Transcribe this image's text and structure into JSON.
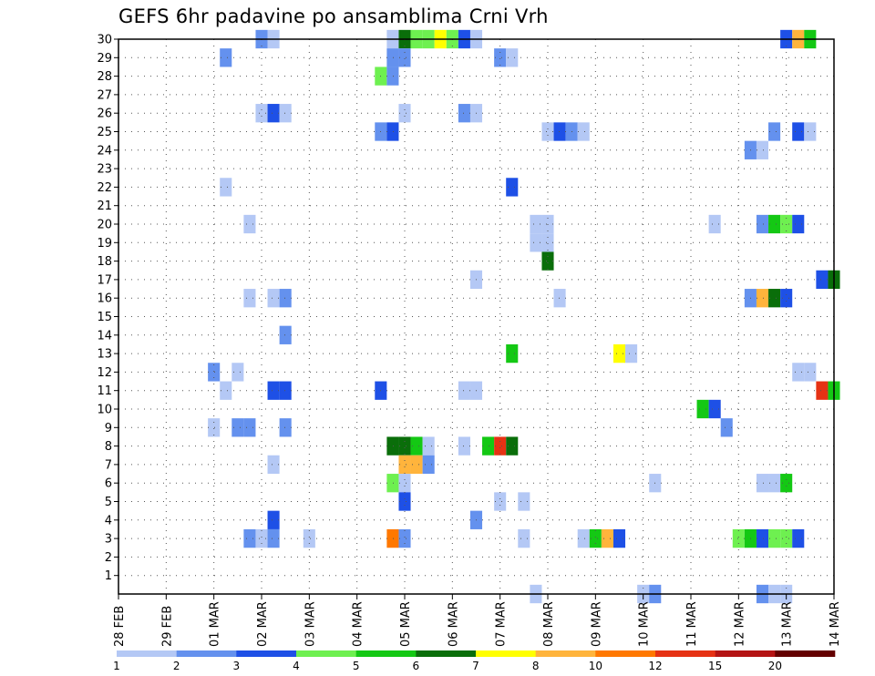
{
  "chart_data": {
    "type": "heatmap",
    "title": "GEFS 6hr padavine po ansamblima Crni Vrh",
    "xlabel": "",
    "ylabel": "",
    "x_unit": "6-hour step",
    "x_range": [
      0,
      60
    ],
    "y_range": [
      0,
      30
    ],
    "x_ticks": [
      {
        "label": "28 FEB",
        "at": 0
      },
      {
        "label": "29 FEB",
        "at": 4
      },
      {
        "label": "01 MAR",
        "at": 8
      },
      {
        "label": "02 MAR",
        "at": 12
      },
      {
        "label": "03 MAR",
        "at": 16
      },
      {
        "label": "04 MAR",
        "at": 20
      },
      {
        "label": "05 MAR",
        "at": 24
      },
      {
        "label": "06 MAR",
        "at": 28
      },
      {
        "label": "07 MAR",
        "at": 32
      },
      {
        "label": "08 MAR",
        "at": 36
      },
      {
        "label": "09 MAR",
        "at": 40
      },
      {
        "label": "10 MAR",
        "at": 44
      },
      {
        "label": "11 MAR",
        "at": 48
      },
      {
        "label": "12 MAR",
        "at": 52
      },
      {
        "label": "13 MAR",
        "at": 56
      },
      {
        "label": "14 MAR",
        "at": 60
      }
    ],
    "y_ticks": [
      "1",
      "2",
      "3",
      "4",
      "5",
      "6",
      "7",
      "8",
      "9",
      "10",
      "11",
      "12",
      "13",
      "14",
      "15",
      "16",
      "17",
      "18",
      "19",
      "20",
      "21",
      "22",
      "23",
      "24",
      "25",
      "26",
      "27",
      "28",
      "29",
      "30"
    ],
    "grid": true,
    "legend": {
      "placement": "bottom",
      "labels": [
        "1",
        "2",
        "3",
        "4",
        "5",
        "6",
        "7",
        "8",
        "10",
        "12",
        "15",
        "20"
      ],
      "colors": [
        "#b4c8f5",
        "#6491ee",
        "#1e50e6",
        "#6ef050",
        "#14c814",
        "#0a6e0a",
        "#ffff00",
        "#ffb43c",
        "#ff7800",
        "#e63214",
        "#b41414",
        "#640000"
      ]
    },
    "cells": [
      [
        12,
        30,
        2
      ],
      [
        13,
        30,
        1
      ],
      [
        23,
        30,
        1
      ],
      [
        24,
        30,
        6
      ],
      [
        25,
        30,
        4
      ],
      [
        26,
        30,
        4
      ],
      [
        27,
        30,
        7
      ],
      [
        28,
        30,
        4
      ],
      [
        29,
        30,
        3
      ],
      [
        30,
        30,
        1
      ],
      [
        56,
        30,
        3
      ],
      [
        57,
        30,
        8
      ],
      [
        58,
        30,
        5
      ],
      [
        9,
        29,
        2
      ],
      [
        23,
        29,
        2
      ],
      [
        24,
        29,
        2
      ],
      [
        32,
        29,
        2
      ],
      [
        33,
        29,
        1
      ],
      [
        22,
        28,
        4
      ],
      [
        23,
        28,
        2
      ],
      [
        12,
        26,
        1
      ],
      [
        13,
        26,
        3
      ],
      [
        14,
        26,
        1
      ],
      [
        24,
        26,
        1
      ],
      [
        29,
        26,
        2
      ],
      [
        30,
        26,
        1
      ],
      [
        22,
        25,
        2
      ],
      [
        23,
        25,
        3
      ],
      [
        36,
        25,
        1
      ],
      [
        37,
        25,
        3
      ],
      [
        38,
        25,
        2
      ],
      [
        39,
        25,
        1
      ],
      [
        55,
        25,
        2
      ],
      [
        57,
        25,
        3
      ],
      [
        58,
        25,
        1
      ],
      [
        53,
        24,
        2
      ],
      [
        54,
        24,
        1
      ],
      [
        9,
        22,
        1
      ],
      [
        33,
        22,
        3
      ],
      [
        11,
        20,
        1
      ],
      [
        35,
        20,
        1
      ],
      [
        36,
        20,
        1
      ],
      [
        50,
        20,
        1
      ],
      [
        54,
        20,
        2
      ],
      [
        55,
        20,
        5
      ],
      [
        56,
        20,
        4
      ],
      [
        57,
        20,
        3
      ],
      [
        35,
        19,
        1
      ],
      [
        36,
        19,
        1
      ],
      [
        36,
        18,
        6
      ],
      [
        30,
        17,
        1
      ],
      [
        59,
        17,
        3
      ],
      [
        60,
        17,
        6
      ],
      [
        11,
        16,
        1
      ],
      [
        13,
        16,
        1
      ],
      [
        14,
        16,
        2
      ],
      [
        37,
        16,
        1
      ],
      [
        53,
        16,
        2
      ],
      [
        54,
        16,
        8
      ],
      [
        55,
        16,
        6
      ],
      [
        56,
        16,
        3
      ],
      [
        14,
        14,
        2
      ],
      [
        33,
        13,
        5
      ],
      [
        42,
        13,
        7
      ],
      [
        43,
        13,
        1
      ],
      [
        8,
        12,
        2
      ],
      [
        10,
        12,
        1
      ],
      [
        57,
        12,
        1
      ],
      [
        58,
        12,
        1
      ],
      [
        9,
        11,
        1
      ],
      [
        13,
        11,
        3
      ],
      [
        14,
        11,
        3
      ],
      [
        22,
        11,
        3
      ],
      [
        29,
        11,
        1
      ],
      [
        30,
        11,
        1
      ],
      [
        59,
        11,
        10
      ],
      [
        60,
        11,
        5
      ],
      [
        49,
        10,
        5
      ],
      [
        50,
        10,
        3
      ],
      [
        8,
        9,
        1
      ],
      [
        10,
        9,
        2
      ],
      [
        11,
        9,
        2
      ],
      [
        14,
        9,
        2
      ],
      [
        51,
        9,
        2
      ],
      [
        23,
        8,
        6
      ],
      [
        24,
        8,
        6
      ],
      [
        25,
        8,
        5
      ],
      [
        26,
        8,
        1
      ],
      [
        29,
        8,
        1
      ],
      [
        31,
        8,
        5
      ],
      [
        32,
        8,
        10
      ],
      [
        33,
        8,
        6
      ],
      [
        13,
        7,
        1
      ],
      [
        24,
        7,
        8
      ],
      [
        25,
        7,
        8
      ],
      [
        26,
        7,
        2
      ],
      [
        23,
        6,
        4
      ],
      [
        24,
        6,
        1
      ],
      [
        45,
        6,
        1
      ],
      [
        54,
        6,
        1
      ],
      [
        55,
        6,
        1
      ],
      [
        56,
        6,
        5
      ],
      [
        24,
        5,
        3
      ],
      [
        32,
        5,
        1
      ],
      [
        34,
        5,
        1
      ],
      [
        13,
        4,
        3
      ],
      [
        30,
        4,
        2
      ],
      [
        11,
        3,
        2
      ],
      [
        12,
        3,
        1
      ],
      [
        13,
        3,
        2
      ],
      [
        16,
        3,
        1
      ],
      [
        23,
        3,
        9
      ],
      [
        24,
        3,
        2
      ],
      [
        34,
        3,
        1
      ],
      [
        39,
        3,
        1
      ],
      [
        40,
        3,
        5
      ],
      [
        41,
        3,
        8
      ],
      [
        42,
        3,
        3
      ],
      [
        52,
        3,
        4
      ],
      [
        53,
        3,
        5
      ],
      [
        54,
        3,
        3
      ],
      [
        55,
        3,
        4
      ],
      [
        56,
        3,
        4
      ],
      [
        57,
        3,
        3
      ],
      [
        35,
        0,
        1
      ],
      [
        44,
        0,
        1
      ],
      [
        45,
        0,
        2
      ],
      [
        54,
        0,
        2
      ],
      [
        55,
        0,
        1
      ],
      [
        56,
        0,
        1
      ]
    ]
  }
}
